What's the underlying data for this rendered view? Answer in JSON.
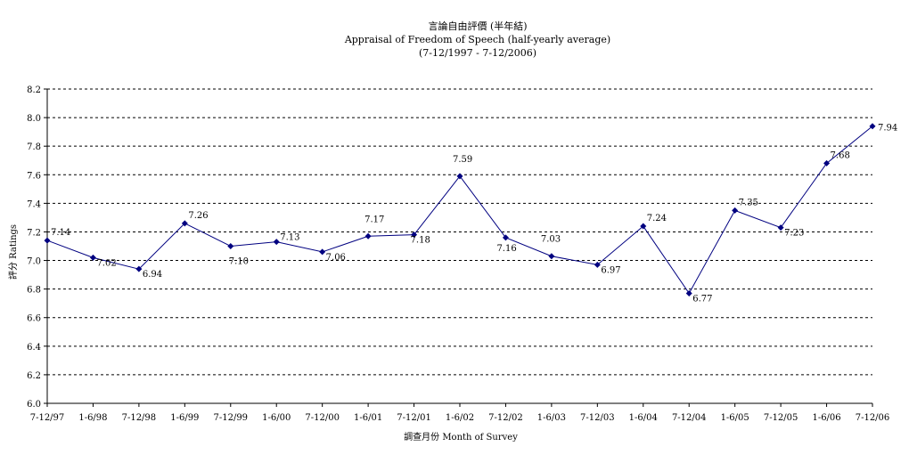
{
  "chart_data": {
    "type": "line",
    "title": "言論自由評價 (半年結)",
    "subtitle": "Appraisal of Freedom of Speech (half-yearly average)",
    "subtitle2": "(7-12/1997 - 7-12/2006)",
    "xlabel": "調查月份 Month of Survey",
    "ylabel": "評分 Ratings",
    "ylim": [
      6.0,
      8.2
    ],
    "yticks": [
      "6.0",
      "6.2",
      "6.4",
      "6.6",
      "6.8",
      "7.0",
      "7.2",
      "7.4",
      "7.6",
      "7.8",
      "8.0",
      "8.2"
    ],
    "grid": true,
    "categories": [
      "7-12/97",
      "1-6/98",
      "7-12/98",
      "1-6/99",
      "7-12/99",
      "1-6/00",
      "7-12/00",
      "1-6/01",
      "7-12/01",
      "1-6/02",
      "7-12/02",
      "1-6/03",
      "7-12/03",
      "1-6/04",
      "7-12/04",
      "1-6/05",
      "7-12/05",
      "1-6/06",
      "7-12/06"
    ],
    "values": [
      7.14,
      7.02,
      6.94,
      7.26,
      7.1,
      7.13,
      7.06,
      7.17,
      7.18,
      7.59,
      7.16,
      7.03,
      6.97,
      7.24,
      6.77,
      7.35,
      7.23,
      7.68,
      7.94
    ],
    "value_labels": [
      "7.14",
      "7.02",
      "6.94",
      "7.26",
      "7.10",
      "7.13",
      "7.06",
      "7.17",
      "7.18",
      "7.59",
      "7.16",
      "7.03",
      "6.97",
      "7.24",
      "6.77",
      "7.35",
      "7.23",
      "7.68",
      "7.94"
    ],
    "line_color": "#000080"
  }
}
